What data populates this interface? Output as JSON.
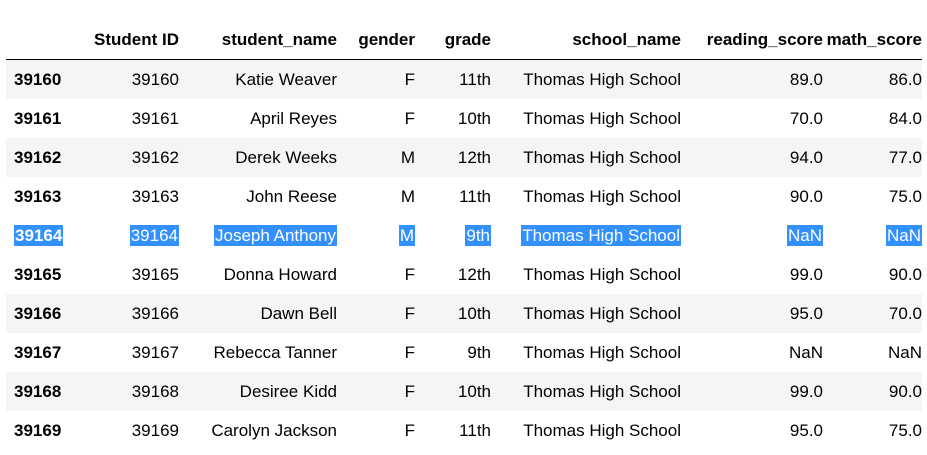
{
  "table": {
    "columns": [
      "",
      "Student ID",
      "student_name",
      "gender",
      "grade",
      "school_name",
      "reading_score",
      "math_score"
    ],
    "rows": [
      {
        "index": "39160",
        "student_id": "39160",
        "student_name": "Katie Weaver",
        "gender": "F",
        "grade": "11th",
        "school_name": "Thomas High School",
        "reading_score": "89.0",
        "math_score": "86.0",
        "selected": false
      },
      {
        "index": "39161",
        "student_id": "39161",
        "student_name": "April Reyes",
        "gender": "F",
        "grade": "10th",
        "school_name": "Thomas High School",
        "reading_score": "70.0",
        "math_score": "84.0",
        "selected": false
      },
      {
        "index": "39162",
        "student_id": "39162",
        "student_name": "Derek Weeks",
        "gender": "M",
        "grade": "12th",
        "school_name": "Thomas High School",
        "reading_score": "94.0",
        "math_score": "77.0",
        "selected": false
      },
      {
        "index": "39163",
        "student_id": "39163",
        "student_name": "John Reese",
        "gender": "M",
        "grade": "11th",
        "school_name": "Thomas High School",
        "reading_score": "90.0",
        "math_score": "75.0",
        "selected": false
      },
      {
        "index": "39164",
        "student_id": "39164",
        "student_name": "Joseph Anthony",
        "gender": "M",
        "grade": "9th",
        "school_name": "Thomas High School",
        "reading_score": "NaN",
        "math_score": "NaN",
        "selected": true
      },
      {
        "index": "39165",
        "student_id": "39165",
        "student_name": "Donna Howard",
        "gender": "F",
        "grade": "12th",
        "school_name": "Thomas High School",
        "reading_score": "99.0",
        "math_score": "90.0",
        "selected": false
      },
      {
        "index": "39166",
        "student_id": "39166",
        "student_name": "Dawn Bell",
        "gender": "F",
        "grade": "10th",
        "school_name": "Thomas High School",
        "reading_score": "95.0",
        "math_score": "70.0",
        "selected": false
      },
      {
        "index": "39167",
        "student_id": "39167",
        "student_name": "Rebecca Tanner",
        "gender": "F",
        "grade": "9th",
        "school_name": "Thomas High School",
        "reading_score": "NaN",
        "math_score": "NaN",
        "selected": false
      },
      {
        "index": "39168",
        "student_id": "39168",
        "student_name": "Desiree Kidd",
        "gender": "F",
        "grade": "10th",
        "school_name": "Thomas High School",
        "reading_score": "99.0",
        "math_score": "90.0",
        "selected": false
      },
      {
        "index": "39169",
        "student_id": "39169",
        "student_name": "Carolyn Jackson",
        "gender": "F",
        "grade": "11th",
        "school_name": "Thomas High School",
        "reading_score": "95.0",
        "math_score": "75.0",
        "selected": false
      }
    ]
  },
  "colors": {
    "selection": "#3390ff",
    "stripe": "#f5f5f5"
  }
}
